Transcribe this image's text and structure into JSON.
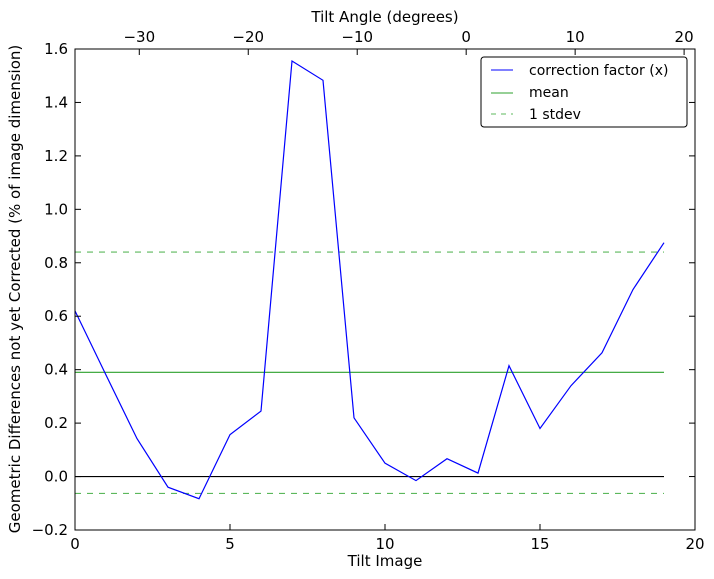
{
  "chart_data": {
    "type": "line",
    "xlabel": "Tilt Image",
    "ylabel": "Geometric Differences not yet Corrected (% of image dimension)",
    "top_xlabel": "Tilt Angle (degrees)",
    "xlim": [
      0,
      20
    ],
    "ylim": [
      -0.2,
      1.6
    ],
    "top_xlim": [
      -35.9,
      21.0
    ],
    "xticks": [
      0,
      5,
      10,
      15,
      20
    ],
    "yticks": [
      -0.2,
      0.0,
      0.2,
      0.4,
      0.6,
      0.8,
      1.0,
      1.2,
      1.4,
      1.6
    ],
    "ytick_labels": [
      "−0.2",
      "0.0",
      "0.2",
      "0.4",
      "0.6",
      "0.8",
      "1.0",
      "1.2",
      "1.4",
      "1.6"
    ],
    "top_xticks": [
      -30,
      -20,
      -10,
      0,
      10,
      20
    ],
    "top_xtick_labels": [
      "−30",
      "−20",
      "−10",
      "0",
      "10",
      "20"
    ],
    "grid": false,
    "legend_position": "top-right",
    "series": [
      {
        "name": "correction factor (x)",
        "color": "#0000ff",
        "style": "solid",
        "x": [
          0,
          1,
          2,
          3,
          4,
          5,
          6,
          7,
          8,
          9,
          10,
          11,
          12,
          13,
          14,
          15,
          16,
          17,
          18,
          19
        ],
        "y": [
          0.62,
          0.38,
          0.142,
          -0.04,
          -0.083,
          0.157,
          0.245,
          1.555,
          1.483,
          0.22,
          0.05,
          -0.015,
          0.067,
          0.013,
          0.415,
          0.18,
          0.34,
          0.463,
          0.7,
          0.875
        ]
      },
      {
        "name": "mean",
        "color": "#2ca02c",
        "style": "solid",
        "x": [
          0,
          19
        ],
        "y": [
          0.39,
          0.39
        ]
      },
      {
        "name": "1 stdev",
        "color": "#5cb85c",
        "style": "dashed",
        "x": [
          0,
          19
        ],
        "y": [
          0.84,
          0.84
        ]
      },
      {
        "color": "#5cb85c",
        "style": "dashed",
        "x": [
          0,
          19
        ],
        "y": [
          -0.063,
          -0.063
        ]
      },
      {
        "color": "#000000",
        "style": "solid",
        "x": [
          0,
          19
        ],
        "y": [
          0,
          0
        ]
      }
    ]
  }
}
